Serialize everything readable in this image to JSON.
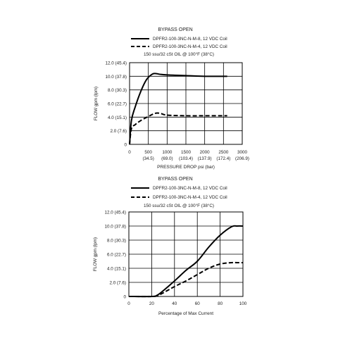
{
  "chart_data": [
    {
      "type": "line",
      "title": "BYPASS OPEN",
      "subtitle": "150 ssu/32 cSt OIL @ 100°F (38°C)",
      "xlabel": "PRESSURE DROP psi (bar)",
      "ylabel": "FLOW gpm (lpm)",
      "xlim": [
        0,
        3000
      ],
      "ylim": [
        0,
        12
      ],
      "grid": true,
      "legend_position": "top",
      "xticks": [
        {
          "value": 0,
          "label": "0",
          "sub": ""
        },
        {
          "value": 500,
          "label": "500",
          "sub": "(34.5)"
        },
        {
          "value": 1000,
          "label": "1000",
          "sub": "(69.0)"
        },
        {
          "value": 1500,
          "label": "1500",
          "sub": "(103.4)"
        },
        {
          "value": 2000,
          "label": "2000",
          "sub": "(137.9)"
        },
        {
          "value": 2500,
          "label": "2500",
          "sub": "(172.4)"
        },
        {
          "value": 3000,
          "label": "3000",
          "sub": "(206.9)"
        }
      ],
      "yticks": [
        {
          "value": 0,
          "label": "0"
        },
        {
          "value": 2,
          "label": "2.0 (7.6)"
        },
        {
          "value": 4,
          "label": "4.0 (15.1)"
        },
        {
          "value": 6,
          "label": "6.0 (22.7)"
        },
        {
          "value": 8,
          "label": "8.0 (30.3)"
        },
        {
          "value": 10,
          "label": "10.0 (37.8)"
        },
        {
          "value": 12,
          "label": "12.0 (45.4)"
        }
      ],
      "series": [
        {
          "name": "DPFR2-100-3NC-N-M-8, 12 VDC Coil",
          "style": "solid",
          "x": [
            0,
            50,
            150,
            300,
            450,
            600,
            700,
            800,
            1000,
            1500,
            2000,
            2500,
            2600
          ],
          "y": [
            0,
            3.5,
            5.5,
            7.8,
            9.5,
            10.3,
            10.4,
            10.3,
            10.2,
            10.1,
            10.0,
            10.0,
            10.0
          ]
        },
        {
          "name": "DPFR2-100-3NC-N-M-4, 12 VDC Coil",
          "style": "dashed",
          "x": [
            0,
            50,
            150,
            300,
            500,
            650,
            750,
            850,
            1000,
            1500,
            2000,
            2500,
            2600
          ],
          "y": [
            0,
            2.3,
            2.9,
            3.5,
            4.1,
            4.5,
            4.6,
            4.5,
            4.3,
            4.2,
            4.2,
            4.2,
            4.2
          ]
        }
      ]
    },
    {
      "type": "line",
      "title": "BYPASS OPEN",
      "subtitle": "150 ssu/32 cSt OIL @ 100°F (38°C)",
      "xlabel": "Percentage of Max Current",
      "ylabel": "FLOW gpm (lpm)",
      "xlim": [
        0,
        100
      ],
      "ylim": [
        0,
        12
      ],
      "grid": true,
      "legend_position": "top",
      "xticks": [
        {
          "value": 0,
          "label": "0",
          "sub": ""
        },
        {
          "value": 20,
          "label": "20",
          "sub": ""
        },
        {
          "value": 40,
          "label": "40",
          "sub": ""
        },
        {
          "value": 60,
          "label": "60",
          "sub": ""
        },
        {
          "value": 80,
          "label": "80",
          "sub": ""
        },
        {
          "value": 100,
          "label": "100",
          "sub": ""
        }
      ],
      "yticks": [
        {
          "value": 0,
          "label": "0"
        },
        {
          "value": 2,
          "label": "2.0 (7.6)"
        },
        {
          "value": 4,
          "label": "4.0 (15.1)"
        },
        {
          "value": 6,
          "label": "6.0 (22.7)"
        },
        {
          "value": 8,
          "label": "8.0 (30.3)"
        },
        {
          "value": 10,
          "label": "10.0 (37.8)"
        },
        {
          "value": 12,
          "label": "12.0 (45.4)"
        }
      ],
      "series": [
        {
          "name": "DPFR2-100-3NC-N-M-8, 12 VDC Coil",
          "style": "solid",
          "x": [
            0,
            20,
            25,
            30,
            40,
            50,
            60,
            70,
            80,
            90,
            95,
            100
          ],
          "y": [
            0,
            0,
            0.2,
            0.8,
            2.2,
            3.7,
            5.0,
            7.0,
            8.7,
            9.9,
            10.0,
            10.0
          ]
        },
        {
          "name": "DPFR2-100-3NC-N-M-4, 12 VDC Coil",
          "style": "dashed",
          "x": [
            0,
            20,
            25,
            30,
            40,
            50,
            60,
            70,
            80,
            90,
            95,
            100
          ],
          "y": [
            0,
            0,
            0.1,
            0.5,
            1.4,
            2.2,
            3.1,
            4.0,
            4.6,
            4.8,
            4.8,
            4.8
          ]
        }
      ]
    }
  ]
}
